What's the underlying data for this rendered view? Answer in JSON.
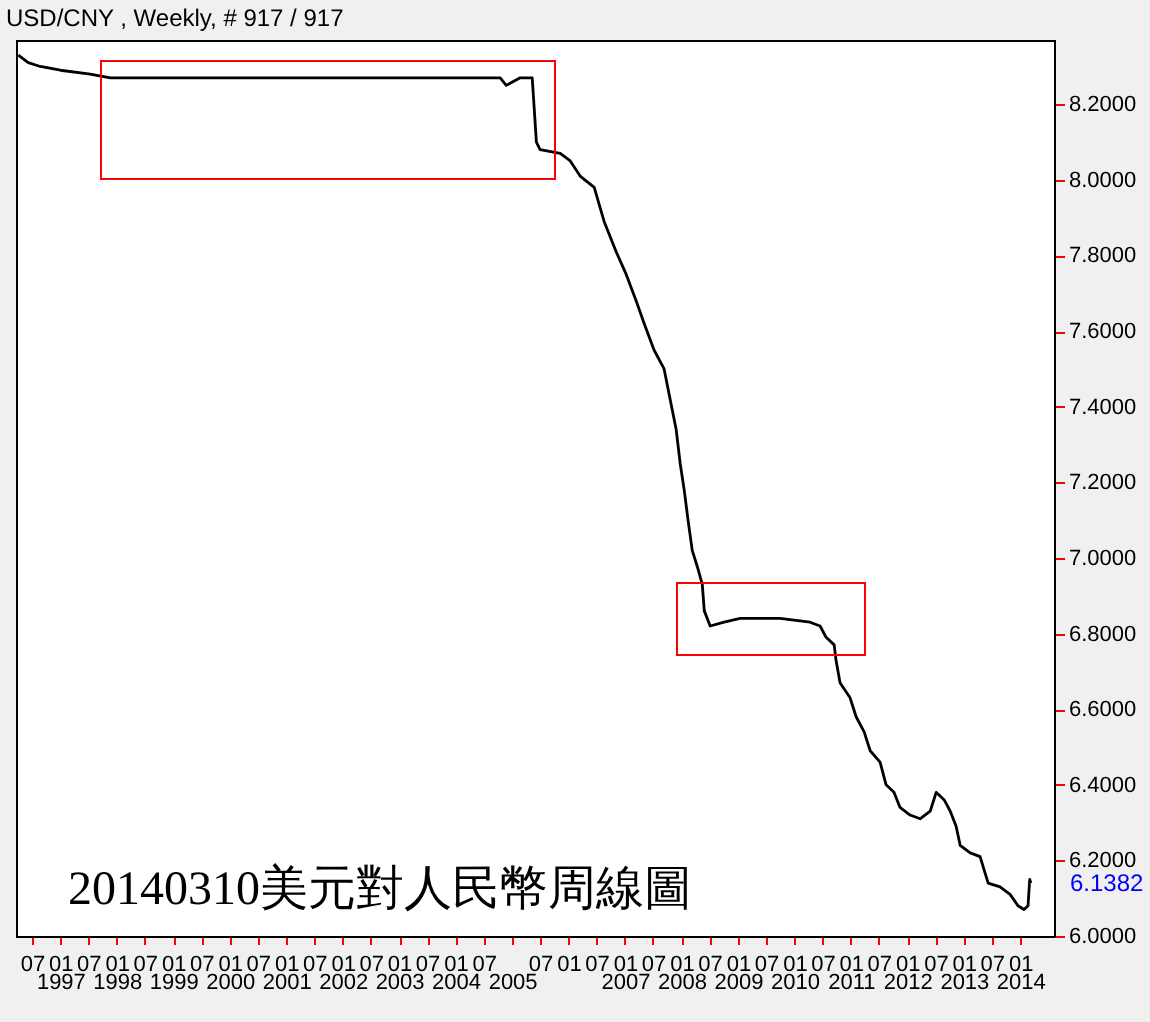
{
  "chart_data": {
    "type": "line",
    "title": "USD/CNY , Weekly, # 917 / 917",
    "annotations": [
      "20140310美元對人民幣周線圖",
      "6.1382"
    ],
    "x": [
      "1996-04-04",
      "1996-06-07",
      "1996-08-24",
      "1997-01-01",
      "1997-07-13",
      "1997-11-20",
      "1999-04-20",
      "2001-04-01",
      "2003-01-08",
      "2004-10-16",
      "2004-11-24",
      "2005-02-22",
      "2005-05-11",
      "2005-06-07",
      "2005-07-01",
      "2005-11-08",
      "2006-01-12",
      "2006-03-17",
      "2006-06-16",
      "2006-08-19",
      "2006-11-05",
      "2007-01-09",
      "2007-03-14",
      "2007-05-05",
      "2007-07-08",
      "2007-09-11",
      "2007-10-20",
      "2007-11-28",
      "2007-12-24",
      "2008-01-19",
      "2008-02-13",
      "2008-03-11",
      "2008-04-18",
      "2008-05-15",
      "2008-05-28",
      "2008-07-05",
      "2008-10-03",
      "2009-01-15",
      "2009-04-28",
      "2009-09-30",
      "2010-04-12",
      "2010-06-16",
      "2010-07-25",
      "2010-09-15",
      "2010-09-27",
      "2010-10-23",
      "2010-12-27",
      "2011-02-04",
      "2011-03-28",
      "2011-05-06",
      "2011-07-09",
      "2011-08-17",
      "2011-10-07",
      "2011-11-15",
      "2012-01-19",
      "2012-03-24",
      "2012-05-28",
      "2012-07-06",
      "2012-08-27",
      "2012-10-05",
      "2012-11-12",
      "2012-12-08",
      "2013-02-11",
      "2013-04-16",
      "2013-06-07",
      "2013-08-23",
      "2013-10-27",
      "2013-12-17",
      "2014-01-25",
      "2014-02-20",
      "2014-03-03",
      "2014-03-10"
    ],
    "series": [
      {
        "color": "#000000",
        "values": [
          8.33,
          8.31,
          8.3,
          8.29,
          8.28,
          8.27,
          8.27,
          8.27,
          8.27,
          8.27,
          8.25,
          8.27,
          8.27,
          8.1,
          8.08,
          8.07,
          8.05,
          8.01,
          7.98,
          7.89,
          7.81,
          7.75,
          7.68,
          7.62,
          7.55,
          7.5,
          7.42,
          7.34,
          7.25,
          7.18,
          7.1,
          7.02,
          6.97,
          6.93,
          6.86,
          6.82,
          6.83,
          6.84,
          6.84,
          6.84,
          6.83,
          6.82,
          6.79,
          6.77,
          6.73,
          6.67,
          6.63,
          6.58,
          6.54,
          6.49,
          6.46,
          6.4,
          6.38,
          6.34,
          6.32,
          6.31,
          6.33,
          6.38,
          6.36,
          6.33,
          6.29,
          6.24,
          6.22,
          6.21,
          6.14,
          6.13,
          6.11,
          6.08,
          6.07,
          6.08,
          6.15,
          6.14
        ]
      }
    ],
    "xlim": [
      "1996-03-20",
      "2014-08-07"
    ],
    "xticks": [
      {
        "value": "1996-07-01",
        "label": "07"
      },
      {
        "value": "1997-01-01",
        "label": "01"
      },
      {
        "value": "1997-07-01",
        "label": "07"
      },
      {
        "value": "1998-01-01",
        "label": "01"
      },
      {
        "value": "1998-07-01",
        "label": "07"
      },
      {
        "value": "1999-01-01",
        "label": "01"
      },
      {
        "value": "1999-07-01",
        "label": "07"
      },
      {
        "value": "2000-01-01",
        "label": "01"
      },
      {
        "value": "2000-07-01",
        "label": "07"
      },
      {
        "value": "2001-01-01",
        "label": "01"
      },
      {
        "value": "2001-07-01",
        "label": "07"
      },
      {
        "value": "2002-01-01",
        "label": "01"
      },
      {
        "value": "2002-07-01",
        "label": "07"
      },
      {
        "value": "2003-01-01",
        "label": "01"
      },
      {
        "value": "2003-07-01",
        "label": "07"
      },
      {
        "value": "2004-01-01",
        "label": "01"
      },
      {
        "value": "2004-07-01",
        "label": "07"
      },
      {
        "value": "2005-01-01",
        "label": null
      },
      {
        "value": "2005-07-01",
        "label": "07"
      },
      {
        "value": "2006-01-01",
        "label": "01"
      },
      {
        "value": "2006-07-01",
        "label": "07"
      },
      {
        "value": "2007-01-01",
        "label": "01"
      },
      {
        "value": "2007-07-01",
        "label": "07"
      },
      {
        "value": "2008-01-01",
        "label": "01"
      },
      {
        "value": "2008-07-01",
        "label": "07"
      },
      {
        "value": "2009-01-01",
        "label": "01"
      },
      {
        "value": "2009-07-01",
        "label": "07"
      },
      {
        "value": "2010-01-01",
        "label": "01"
      },
      {
        "value": "2010-07-01",
        "label": "07"
      },
      {
        "value": "2011-01-01",
        "label": "01"
      },
      {
        "value": "2011-07-01",
        "label": "07"
      },
      {
        "value": "2012-01-01",
        "label": "01"
      },
      {
        "value": "2012-07-01",
        "label": "07"
      },
      {
        "value": "2013-01-01",
        "label": "01"
      },
      {
        "value": "2013-07-01",
        "label": "07"
      },
      {
        "value": "2014-01-01",
        "label": "01"
      }
    ],
    "x2lim": [
      "1996-03-20",
      "2014-08-07"
    ],
    "x2ticks": [
      {
        "value": "1997-01-01",
        "label": "1997"
      },
      {
        "value": "1998-01-01",
        "label": "1998"
      },
      {
        "value": "1999-01-01",
        "label": "1999"
      },
      {
        "value": "2000-01-01",
        "label": "2000"
      },
      {
        "value": "2001-01-01",
        "label": "2001"
      },
      {
        "value": "2002-01-01",
        "label": "2002"
      },
      {
        "value": "2003-01-01",
        "label": "2003"
      },
      {
        "value": "2004-01-01",
        "label": "2004"
      },
      {
        "value": "2005-01-01",
        "label": "2005"
      },
      {
        "value": "2007-01-01",
        "label": "2007"
      },
      {
        "value": "2008-01-01",
        "label": "2008"
      },
      {
        "value": "2009-01-01",
        "label": "2009"
      },
      {
        "value": "2010-01-01",
        "label": "2010"
      },
      {
        "value": "2011-01-01",
        "label": "2011"
      },
      {
        "value": "2012-01-01",
        "label": "2012"
      },
      {
        "value": "2013-01-01",
        "label": "2013"
      },
      {
        "value": "2014-01-01",
        "label": "2014"
      }
    ],
    "ylim": [
      6.0,
      8.37
    ],
    "yticks": [
      {
        "value": 6.0,
        "label": "6.0000"
      },
      {
        "value": 6.2,
        "label": "6.2000"
      },
      {
        "value": 6.4,
        "label": "6.4000"
      },
      {
        "value": 6.6,
        "label": "6.6000"
      },
      {
        "value": 6.8,
        "label": "6.8000"
      },
      {
        "value": 7.0,
        "label": "7.0000"
      },
      {
        "value": 7.2,
        "label": "7.2000"
      },
      {
        "value": 7.4,
        "label": "7.4000"
      },
      {
        "value": 7.6,
        "label": "7.6000"
      },
      {
        "value": 7.8,
        "label": "7.8000"
      },
      {
        "value": 8.0,
        "label": "8.0000"
      },
      {
        "value": 8.2,
        "label": "8.2000"
      }
    ],
    "grid": false,
    "marker": "none",
    "line_style": "solid"
  }
}
